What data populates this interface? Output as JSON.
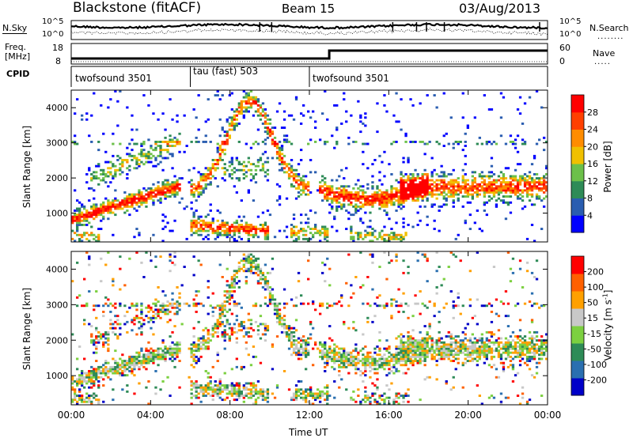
{
  "header": {
    "title": "Blackstone (fitACF)",
    "beam": "Beam 15",
    "date": "03/Aug/2013"
  },
  "top_panels": {
    "nsky_label": "N.Sky",
    "nsky_ticks": [
      "10^5",
      "10^0"
    ],
    "nsearch_label": "N.Search",
    "nsearch_ticks": [
      "10^5",
      "10^0"
    ],
    "freq_label": "Freq.",
    "freq_unit": "[MHz]",
    "freq_ticks": [
      "18",
      "8"
    ],
    "nave_label": "Nave",
    "nave_ticks": [
      "60",
      "0"
    ],
    "cpid_label": "CPID",
    "cpid_segments": [
      {
        "name": "twofsound 3501",
        "start": 0,
        "end": 6
      },
      {
        "name": "tau (fast) 503",
        "start": 6,
        "end": 12
      },
      {
        "name": "twofsound 3501",
        "start": 12,
        "end": 24
      }
    ],
    "freq_step_hour": 13
  },
  "chart_data": [
    {
      "type": "heatmap",
      "panel": "power",
      "title": "",
      "xlabel": "",
      "ylabel": "Slant Range [km]",
      "xlim": [
        0,
        24
      ],
      "ylim": [
        180,
        4500
      ],
      "yticks": [
        "1000",
        "2000",
        "3000",
        "4000"
      ],
      "colorbar_label": "Power [dB]",
      "colorbar_ticks": [
        "28",
        "24",
        "20",
        "16",
        "12",
        "8",
        "4"
      ],
      "colorbar_range": [
        0,
        30
      ],
      "colors": [
        "#0000ff",
        "#2a5db0",
        "#2e8b57",
        "#6cc04a",
        "#f0c000",
        "#ff8c00",
        "#ff4000",
        "#ff0000"
      ]
    },
    {
      "type": "heatmap",
      "panel": "velocity",
      "title": "",
      "xlabel": "Time UT",
      "ylabel": "Slant Range [km]",
      "xlim": [
        0,
        24
      ],
      "ylim": [
        180,
        4500
      ],
      "yticks": [
        "1000",
        "2000",
        "3000",
        "4000"
      ],
      "xticks": [
        "00:00",
        "04:00",
        "08:00",
        "12:00",
        "16:00",
        "20:00",
        "00:00"
      ],
      "colorbar_label": "Velocity [m s^-1]",
      "colorbar_ticks": [
        "200",
        "100",
        "50",
        "15",
        "-15",
        "-50",
        "-100",
        "-200"
      ],
      "colorbar_range": [
        -250,
        250
      ],
      "colors": [
        "#0000c8",
        "#2a6fb0",
        "#2e8b57",
        "#7cd040",
        "#c8c8c8",
        "#ffa000",
        "#ff6000",
        "#ff0000"
      ]
    }
  ]
}
